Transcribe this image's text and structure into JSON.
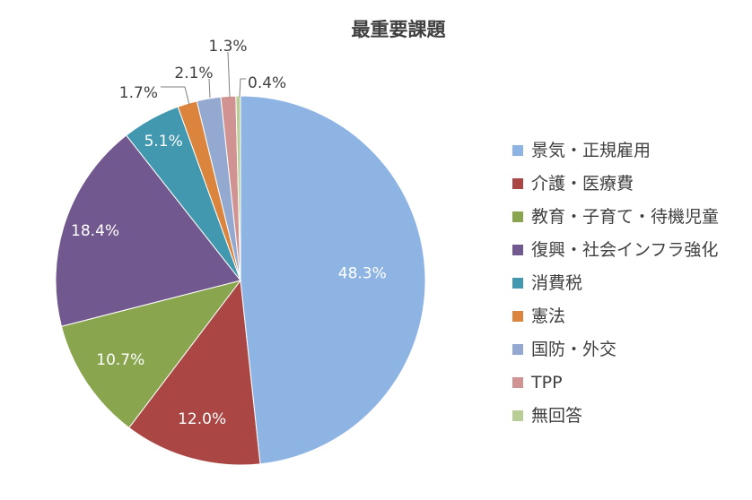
{
  "chart_data": {
    "type": "pie",
    "title": "最重要課題",
    "categories": [
      "景気・正規雇用",
      "介護・医療費",
      "教育・子育て・待機児童",
      "復興・社会インフラ強化",
      "消費税",
      "憲法",
      "国防・外交",
      "TPP",
      "無回答"
    ],
    "values": [
      48.3,
      12.0,
      10.7,
      18.4,
      5.1,
      1.7,
      2.1,
      1.3,
      0.4
    ],
    "value_labels": [
      "48.3%",
      "12.0%",
      "10.7%",
      "18.4%",
      "5.1%",
      "1.7%",
      "2.1%",
      "1.3%",
      "0.4%"
    ],
    "colors": [
      "#8EB4E3",
      "#AA4643",
      "#89A54E",
      "#71588F",
      "#4198AF",
      "#DB843D",
      "#93A9CF",
      "#D19392",
      "#B9CD96"
    ],
    "start_angle": "12 o'clock",
    "direction": "clockwise",
    "legend_position": "right"
  }
}
